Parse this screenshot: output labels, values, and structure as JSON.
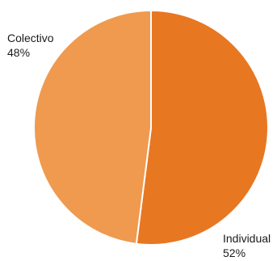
{
  "chart_data": {
    "type": "pie",
    "title": "",
    "start_angle_deg": 0,
    "direction": "clockwise",
    "slices": [
      {
        "label": "Individual",
        "value": 52,
        "value_label": "52%",
        "color": "#e87722"
      },
      {
        "label": "Colectivo",
        "value": 48,
        "value_label": "48%",
        "color": "#ef9a4e"
      }
    ],
    "slice_border_color": "#ffffff",
    "label_text_color": "#1a1a1a"
  }
}
